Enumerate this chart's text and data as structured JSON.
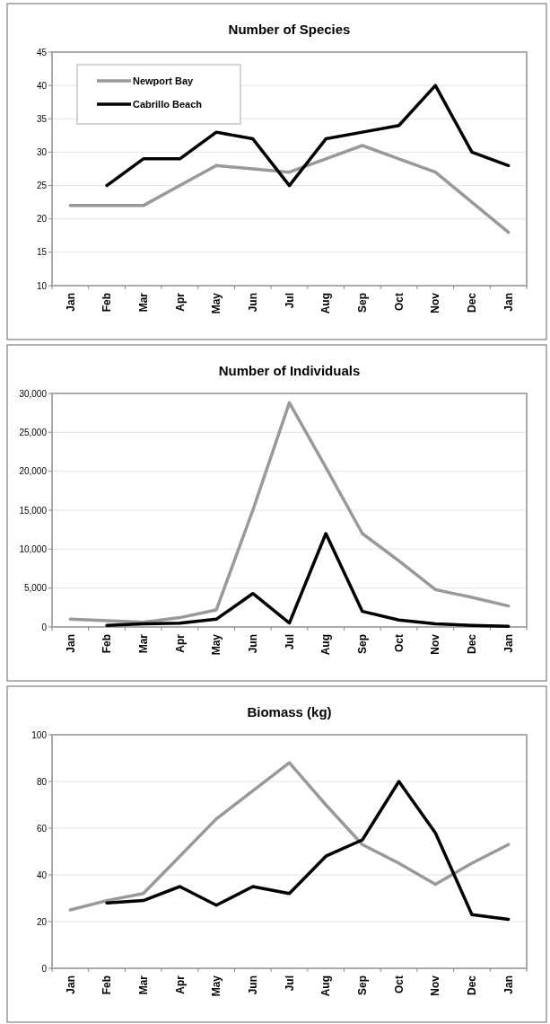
{
  "chart_data": [
    {
      "type": "line",
      "title": "Number of Species",
      "categories": [
        "Jan",
        "Feb",
        "Mar",
        "Apr",
        "May",
        "Jun",
        "Jul",
        "Aug",
        "Sep",
        "Oct",
        "Nov",
        "Dec",
        "Jan"
      ],
      "series": [
        {
          "name": "Newport Bay",
          "color": "#999999",
          "values": [
            22,
            22,
            22,
            25,
            28,
            27.5,
            27,
            29,
            31,
            29,
            27,
            22.5,
            18
          ]
        },
        {
          "name": "Cabrillo Beach",
          "color": "#000000",
          "values": [
            null,
            25,
            29,
            29,
            33,
            32,
            25,
            32,
            33,
            34,
            40,
            30,
            28
          ]
        }
      ],
      "ylim": [
        10,
        45
      ],
      "yticks": [
        10,
        15,
        20,
        25,
        30,
        35,
        40,
        45
      ],
      "grid": "y",
      "legend": "top left",
      "marker": "none",
      "line_style": "solid"
    },
    {
      "type": "line",
      "title": "Number of Individuals",
      "categories": [
        "Jan",
        "Feb",
        "Mar",
        "Apr",
        "May",
        "Jun",
        "Jul",
        "Aug",
        "Sep",
        "Oct",
        "Nov",
        "Dec",
        "Jan"
      ],
      "series": [
        {
          "color": "#999999",
          "values": [
            1000,
            800,
            600,
            1200,
            2200,
            15000,
            28800,
            20500,
            12000,
            8500,
            4800,
            3800,
            2700
          ]
        },
        {
          "color": "#000000",
          "values": [
            null,
            200,
            400,
            500,
            1000,
            4300,
            500,
            12000,
            2000,
            900,
            400,
            200,
            100
          ]
        }
      ],
      "ylim": [
        0,
        30000
      ],
      "yticks": [
        0,
        {
          "value": 5000,
          "label": "5,000"
        },
        {
          "value": 10000,
          "label": "10,000"
        },
        {
          "value": 15000,
          "label": "15,000"
        },
        {
          "value": 20000,
          "label": "20,000"
        },
        {
          "value": 25000,
          "label": "25,000"
        },
        {
          "value": 30000,
          "label": "30,000"
        }
      ],
      "grid": "y",
      "marker": "none",
      "line_style": "solid"
    },
    {
      "type": "line",
      "title": "Biomass (kg)",
      "categories": [
        "Jan",
        "Feb",
        "Mar",
        "Apr",
        "May",
        "Jun",
        "Jul",
        "Aug",
        "Sep",
        "Oct",
        "Nov",
        "Dec",
        "Jan"
      ],
      "series": [
        {
          "color": "#999999",
          "values": [
            25,
            29,
            32,
            48,
            64,
            76,
            88,
            70,
            53,
            45,
            36,
            45,
            53
          ]
        },
        {
          "color": "#000000",
          "values": [
            null,
            28,
            29,
            35,
            27,
            35,
            32,
            48,
            55,
            80,
            58,
            23,
            21
          ]
        }
      ],
      "ylim": [
        0,
        100
      ],
      "yticks": [
        0,
        20,
        40,
        60,
        80,
        100
      ],
      "grid": "y",
      "marker": "none",
      "line_style": "solid"
    }
  ]
}
